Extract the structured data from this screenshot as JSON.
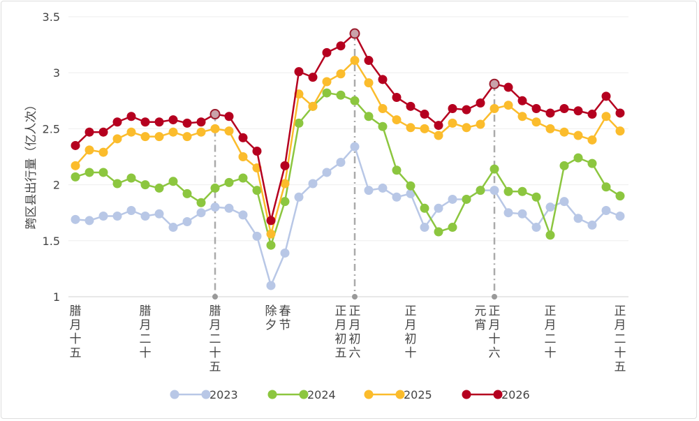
{
  "chart_data": {
    "type": "line",
    "title": "",
    "xlabel": "",
    "ylabel": "跨区县出行量（亿人次）",
    "ylim": [
      1,
      3.5
    ],
    "yticks": [
      "1",
      "1.5",
      "2",
      "2.5",
      "3",
      "3.5"
    ],
    "grid": true,
    "legend_position": "bottom",
    "x_count": 40,
    "x_labels": [
      {
        "index": 0,
        "label": "腊月十五"
      },
      {
        "index": 5,
        "label": "腊月二十"
      },
      {
        "index": 10,
        "label": "腊月二十五"
      },
      {
        "index": 14,
        "label": "除夕"
      },
      {
        "index": 15,
        "label": "春节"
      },
      {
        "index": 19,
        "label": "正月初五"
      },
      {
        "index": 20,
        "label": "正月初六"
      },
      {
        "index": 24,
        "label": "正月初十"
      },
      {
        "index": 29,
        "label": "元宵"
      },
      {
        "index": 30,
        "label": "正月十六"
      },
      {
        "index": 34,
        "label": "正月二十"
      },
      {
        "index": 39,
        "label": "正月二十五"
      }
    ],
    "markers": [
      10,
      20,
      30
    ],
    "series": [
      {
        "name": "2023",
        "color": "#b8c7e6",
        "values": [
          1.69,
          1.68,
          1.72,
          1.72,
          1.77,
          1.72,
          1.74,
          1.62,
          1.67,
          1.75,
          1.8,
          1.79,
          1.73,
          1.54,
          1.1,
          1.39,
          1.89,
          2.01,
          2.11,
          2.2,
          2.34,
          1.95,
          1.97,
          1.89,
          1.92,
          1.62,
          1.79,
          1.87,
          1.87,
          1.95,
          1.95,
          1.75,
          1.74,
          1.62,
          1.8,
          1.85,
          1.7,
          1.64,
          1.77,
          1.72
        ]
      },
      {
        "name": "2024",
        "color": "#8cc63f",
        "values": [
          2.07,
          2.11,
          2.11,
          2.01,
          2.06,
          2.0,
          1.97,
          2.03,
          1.92,
          1.84,
          1.97,
          2.02,
          2.06,
          1.95,
          1.46,
          1.85,
          2.55,
          2.7,
          2.82,
          2.8,
          2.75,
          2.61,
          2.52,
          2.13,
          1.99,
          1.79,
          1.58,
          1.62,
          1.87,
          1.95,
          2.14,
          1.94,
          1.94,
          1.89,
          1.55,
          2.17,
          2.24,
          2.19,
          1.98,
          1.9
        ]
      },
      {
        "name": "2025",
        "color": "#fbbc2c",
        "values": [
          2.17,
          2.31,
          2.29,
          2.41,
          2.47,
          2.43,
          2.43,
          2.47,
          2.43,
          2.47,
          2.5,
          2.48,
          2.25,
          2.15,
          1.56,
          2.01,
          2.81,
          2.7,
          2.92,
          2.99,
          3.11,
          2.91,
          2.68,
          2.58,
          2.51,
          2.5,
          2.44,
          2.55,
          2.51,
          2.54,
          2.68,
          2.71,
          2.61,
          2.56,
          2.5,
          2.47,
          2.44,
          2.4,
          2.61,
          2.48
        ]
      },
      {
        "name": "2026",
        "color": "#b5001f",
        "values": [
          2.35,
          2.47,
          2.47,
          2.56,
          2.61,
          2.56,
          2.56,
          2.58,
          2.55,
          2.56,
          2.63,
          2.61,
          2.42,
          2.3,
          1.68,
          2.17,
          3.01,
          2.96,
          3.18,
          3.24,
          3.35,
          3.11,
          2.94,
          2.78,
          2.7,
          2.63,
          2.53,
          2.68,
          2.67,
          2.73,
          2.9,
          2.87,
          2.75,
          2.68,
          2.64,
          2.68,
          2.66,
          2.63,
          2.79,
          2.64
        ]
      }
    ]
  }
}
